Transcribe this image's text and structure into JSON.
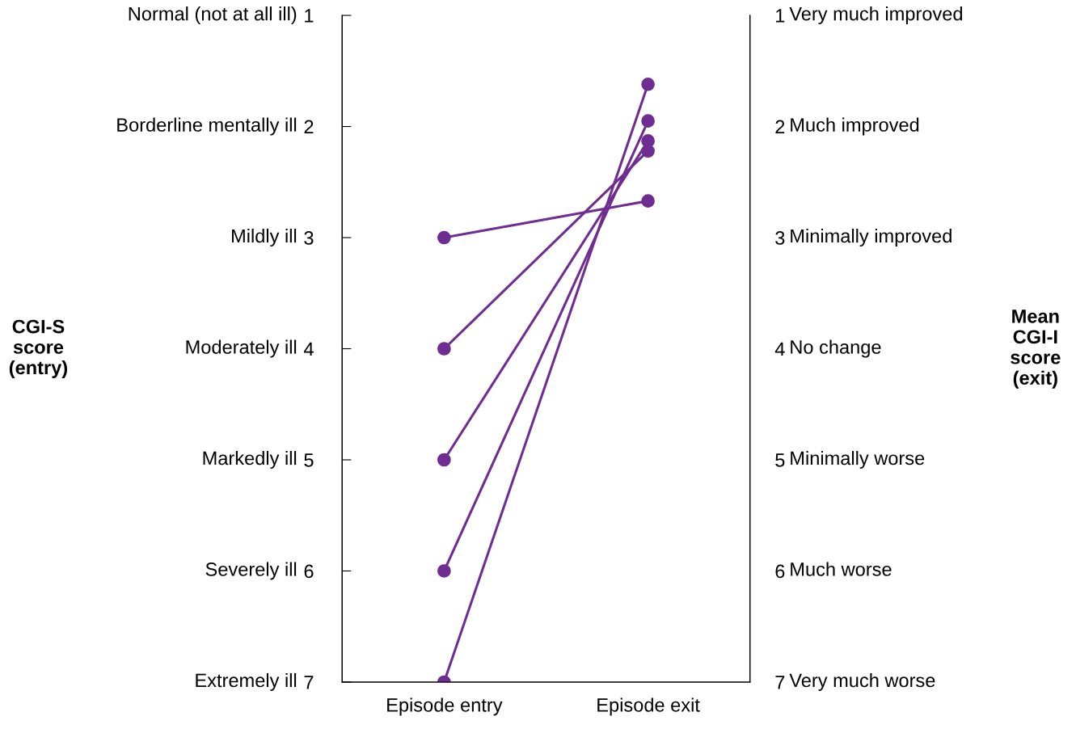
{
  "chart_data": {
    "type": "line",
    "categories": [
      "Episode entry",
      "Episode exit"
    ],
    "ylim": [
      7,
      1
    ],
    "yticks": [
      1,
      2,
      3,
      4,
      5,
      6,
      7
    ],
    "y2lim": [
      7,
      1
    ],
    "y2ticks": [
      1,
      2,
      3,
      4,
      5,
      6,
      7
    ],
    "annotations": [
      "Normal (not at all ill)",
      "Borderline mentally ill",
      "Mildly ill",
      "Moderately ill",
      "Markedly ill",
      "Severely ill",
      "Extremely ill",
      "Very much improved",
      "Much improved",
      "Minimally improved",
      "No change",
      "Minimally worse",
      "Much worse",
      "Very much worse",
      "CGI-S\nscore\n(entry)",
      "Mean\nCGI-I\nscore\n(exit)"
    ],
    "series": [
      {
        "color": "#6f2c91",
        "values": [
          3,
          2.67
        ]
      },
      {
        "color": "#6f2c91",
        "values": [
          4,
          2.22
        ]
      },
      {
        "color": "#6f2c91",
        "values": [
          5,
          2.13
        ]
      },
      {
        "color": "#6f2c91",
        "values": [
          6,
          1.95
        ]
      },
      {
        "color": "#6f2c91",
        "values": [
          7,
          1.62
        ]
      }
    ],
    "marker": "circle",
    "line_style": "solid",
    "grid": false
  }
}
